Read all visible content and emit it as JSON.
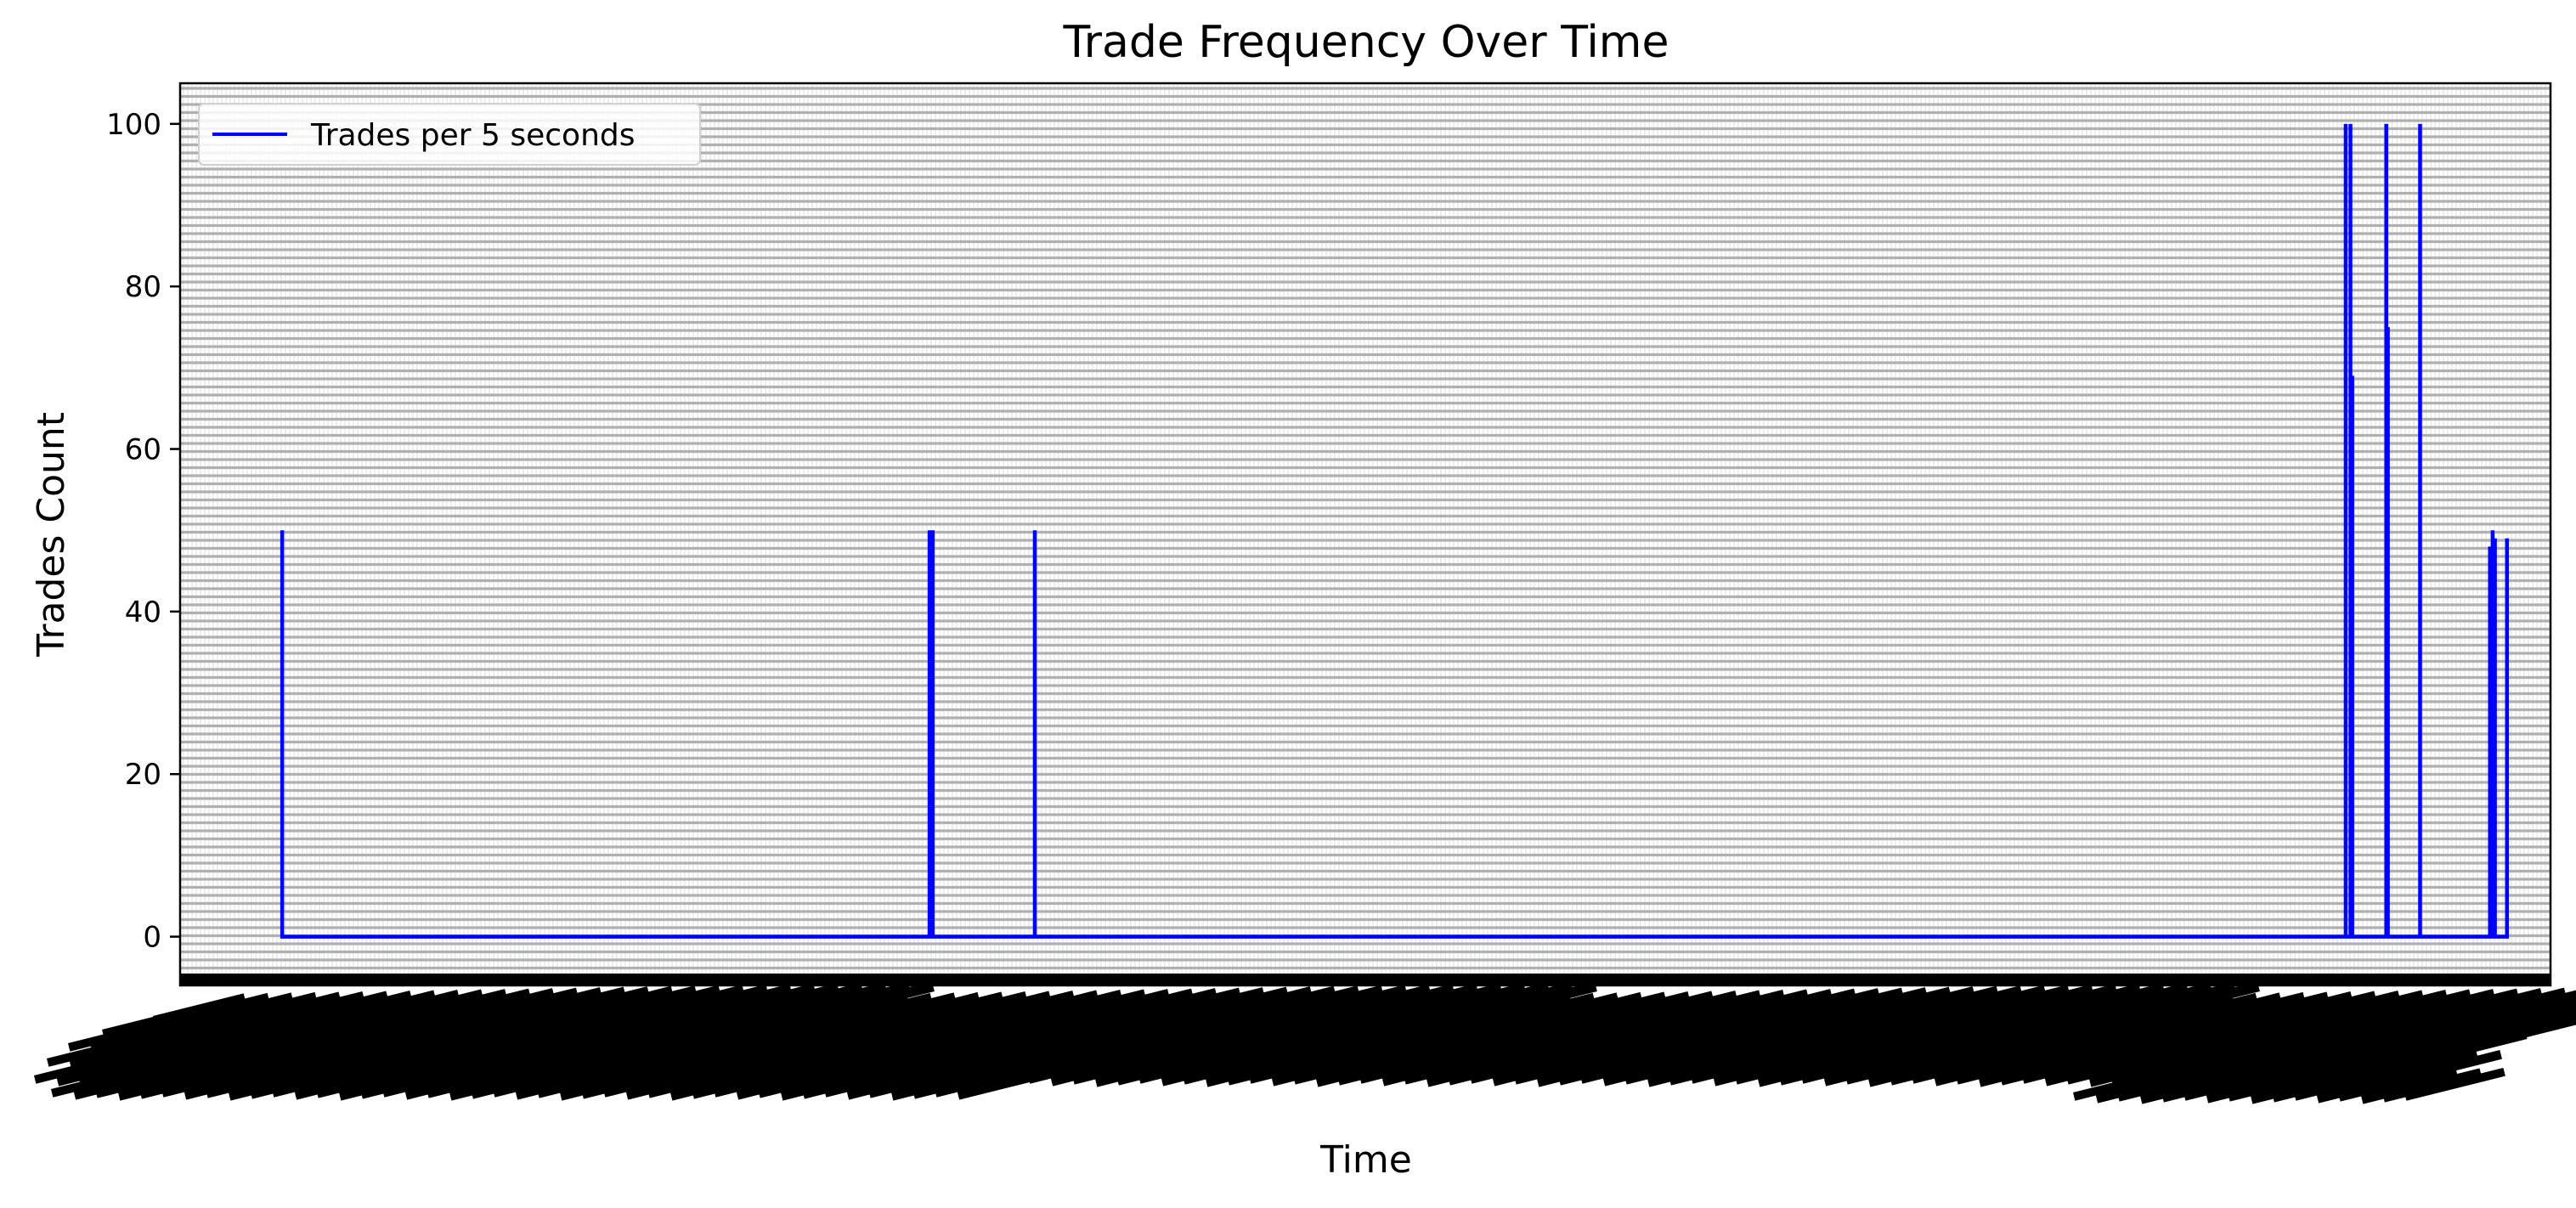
{
  "chart_data": {
    "type": "line",
    "title": "Trade Frequency Over Time",
    "xlabel": "Time",
    "ylabel": "Trades Count",
    "ylim": [
      -6,
      105
    ],
    "yticks": [
      0,
      20,
      40,
      60,
      80,
      100
    ],
    "xlim": [
      -0.045,
      1.0
    ],
    "grid": true,
    "legend_position": "upper-left",
    "colors": {
      "line": "#0000ff",
      "grid": "#b0b0b0",
      "axes": "#000000",
      "text": "#000000"
    },
    "series": [
      {
        "name": "Trades per 5 seconds",
        "color": "#0000ff",
        "x": [
          0.0,
          0.0,
          0.0,
          0.2854,
          0.2854,
          0.2854,
          0.2862,
          0.2862,
          0.2862,
          0.2868,
          0.2868,
          0.2868,
          0.3318,
          0.3318,
          0.3318,
          0.9097,
          0.9097,
          0.9097,
          0.9118,
          0.9118,
          0.9118,
          0.9126,
          0.9126,
          0.9126,
          0.9276,
          0.9276,
          0.9276,
          0.9283,
          0.9283,
          0.9283,
          0.9425,
          0.9425,
          0.9425,
          0.9733,
          0.9733,
          0.9733,
          0.9745,
          0.9745,
          0.9745,
          0.9755,
          0.9755,
          0.9755,
          0.9808,
          0.9808,
          0.9808
        ],
        "y": [
          0,
          50,
          0,
          0,
          50,
          0,
          0,
          50,
          0,
          0,
          50,
          0,
          0,
          50,
          0,
          0,
          100,
          0,
          0,
          100,
          0,
          0,
          69,
          0,
          0,
          100,
          0,
          0,
          75,
          0,
          0,
          100,
          0,
          0,
          48,
          0,
          0,
          50,
          0,
          0,
          49,
          0,
          0,
          49,
          0
        ]
      }
    ]
  }
}
